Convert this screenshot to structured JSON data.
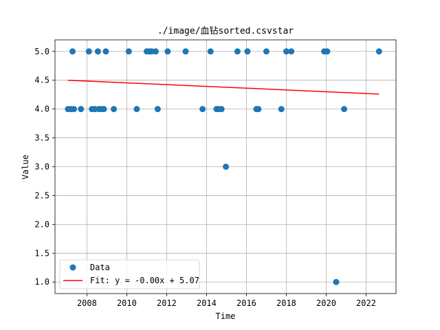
{
  "chart_data": {
    "type": "scatter",
    "title": "./image/血钻sorted.csvstar",
    "xlabel": "Time",
    "ylabel": "Value",
    "xlim": [
      2006.4,
      2023.5
    ],
    "ylim": [
      0.8,
      5.2
    ],
    "grid": true,
    "legend_position": "lower-left",
    "x_ticks": [
      2008,
      2010,
      2012,
      2014,
      2016,
      2018,
      2020,
      2022
    ],
    "x_tick_labels": [
      "2008",
      "2010",
      "2012",
      "2014",
      "2016",
      "2018",
      "2020",
      "2022"
    ],
    "y_ticks": [
      1.0,
      1.5,
      2.0,
      2.5,
      3.0,
      3.5,
      4.0,
      4.5,
      5.0
    ],
    "y_tick_labels": [
      "1.0",
      "1.5",
      "2.0",
      "2.5",
      "3.0",
      "3.5",
      "4.0",
      "4.5",
      "5.0"
    ],
    "series": [
      {
        "name": "Data",
        "kind": "scatter",
        "color": "#1f77b4",
        "points": [
          {
            "x": 2007.05,
            "y": 4
          },
          {
            "x": 2007.2,
            "y": 4
          },
          {
            "x": 2007.28,
            "y": 5
          },
          {
            "x": 2007.35,
            "y": 4
          },
          {
            "x": 2007.7,
            "y": 4
          },
          {
            "x": 2008.1,
            "y": 5
          },
          {
            "x": 2008.25,
            "y": 4
          },
          {
            "x": 2008.4,
            "y": 4
          },
          {
            "x": 2008.55,
            "y": 5
          },
          {
            "x": 2008.6,
            "y": 4
          },
          {
            "x": 2008.75,
            "y": 4
          },
          {
            "x": 2008.85,
            "y": 4
          },
          {
            "x": 2008.95,
            "y": 5
          },
          {
            "x": 2009.35,
            "y": 4
          },
          {
            "x": 2010.1,
            "y": 5
          },
          {
            "x": 2010.5,
            "y": 4
          },
          {
            "x": 2011.0,
            "y": 5
          },
          {
            "x": 2011.15,
            "y": 5
          },
          {
            "x": 2011.25,
            "y": 5
          },
          {
            "x": 2011.45,
            "y": 5
          },
          {
            "x": 2011.55,
            "y": 4
          },
          {
            "x": 2012.05,
            "y": 5
          },
          {
            "x": 2012.95,
            "y": 5
          },
          {
            "x": 2013.8,
            "y": 4
          },
          {
            "x": 2014.2,
            "y": 5
          },
          {
            "x": 2014.5,
            "y": 4
          },
          {
            "x": 2014.6,
            "y": 4
          },
          {
            "x": 2014.75,
            "y": 4
          },
          {
            "x": 2014.97,
            "y": 3
          },
          {
            "x": 2015.55,
            "y": 5
          },
          {
            "x": 2016.05,
            "y": 5
          },
          {
            "x": 2016.5,
            "y": 4
          },
          {
            "x": 2016.6,
            "y": 4
          },
          {
            "x": 2017.0,
            "y": 5
          },
          {
            "x": 2017.75,
            "y": 4
          },
          {
            "x": 2018.0,
            "y": 5
          },
          {
            "x": 2018.25,
            "y": 5
          },
          {
            "x": 2019.9,
            "y": 5
          },
          {
            "x": 2020.05,
            "y": 5
          },
          {
            "x": 2020.5,
            "y": 1
          },
          {
            "x": 2020.9,
            "y": 4
          },
          {
            "x": 2022.65,
            "y": 5
          }
        ]
      },
      {
        "name": "Fit: y = -0.00x + 5.07",
        "kind": "line",
        "color": "#ff0000",
        "points": [
          {
            "x": 2007.05,
            "y": 4.5
          },
          {
            "x": 2022.65,
            "y": 4.26
          }
        ]
      }
    ]
  }
}
